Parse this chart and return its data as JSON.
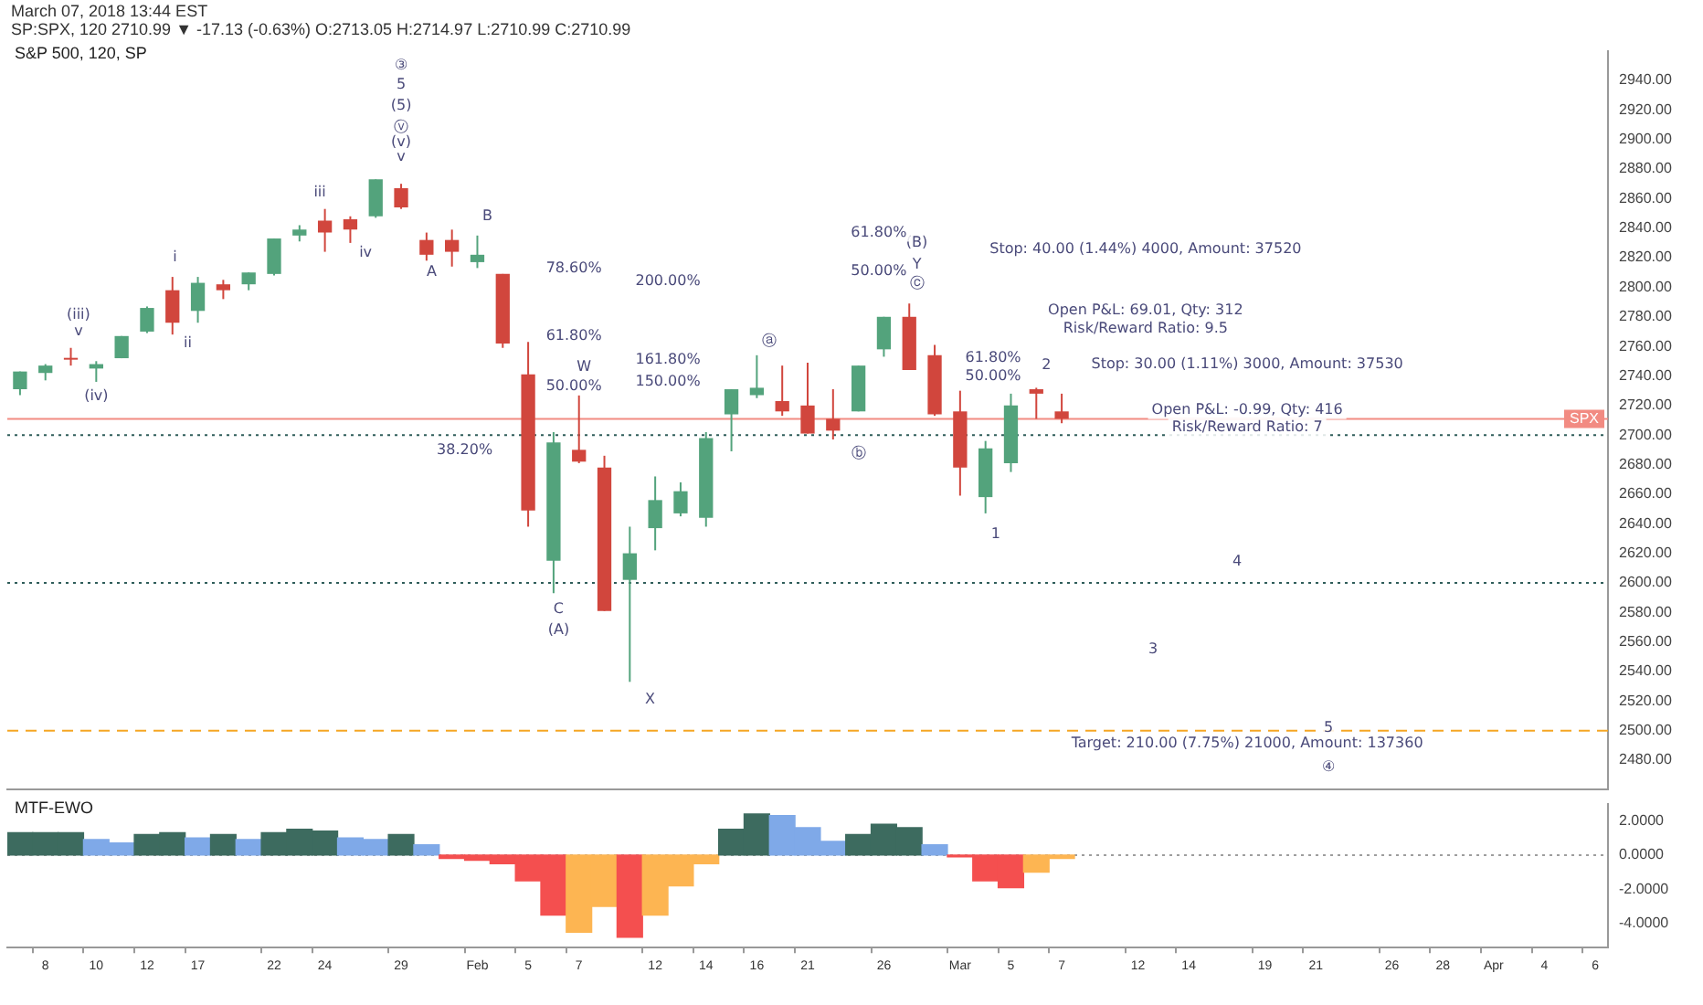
{
  "chart_data": [
    {
      "type": "candlestick",
      "title": "S&P 500, 120, SP",
      "subtitle": "SP:SPX, 120 2710.99 ▼ -17.13 (-0.63%) O:2713.05 H:2714.97 L:2710.99 C:2710.99",
      "categories": [
        null,
        null,
        null,
        null,
        null,
        null,
        null,
        null,
        null,
        null,
        null,
        null,
        null,
        null,
        null,
        null,
        null,
        null,
        null,
        null,
        null,
        null,
        null,
        null,
        null,
        null,
        null,
        null,
        null,
        null,
        null,
        null,
        null,
        null,
        null,
        null,
        null,
        null,
        null,
        null,
        null,
        null,
        null,
        null,
        null,
        null,
        null,
        null,
        null,
        null,
        null,
        null,
        null,
        null,
        null,
        null,
        null,
        null,
        null,
        null,
        null,
        null,
        null
      ],
      "ohlc": [
        [
          2731,
          2743,
          2727,
          2743
        ],
        [
          2742,
          2748,
          2737,
          2747
        ],
        [
          2751,
          2759,
          2747,
          2751
        ],
        [
          2745,
          2750,
          2736,
          2748
        ],
        [
          2752,
          2767,
          2752,
          2767
        ],
        [
          2770,
          2787,
          2769,
          2786
        ],
        [
          2798,
          2807,
          2768,
          2776
        ],
        [
          2784,
          2807,
          2776,
          2803
        ],
        [
          2802,
          2805,
          2792,
          2798
        ],
        [
          2802,
          2810,
          2798,
          2810
        ],
        [
          2809,
          2833,
          2808,
          2833
        ],
        [
          2835,
          2842,
          2831,
          2839
        ],
        [
          2845,
          2853,
          2824,
          2837
        ],
        [
          2846,
          2848,
          2830,
          2839
        ],
        [
          2848,
          2873,
          2847,
          2873
        ],
        [
          2867,
          2870,
          2853,
          2854
        ],
        [
          2832,
          2837,
          2818,
          2822
        ],
        [
          2832,
          2839,
          2814,
          2824
        ],
        [
          2817,
          2835,
          2813,
          2822
        ],
        [
          2809,
          2809,
          2759,
          2762
        ],
        [
          2741,
          2763,
          2638,
          2649
        ],
        [
          2615,
          2702,
          2593,
          2695
        ],
        [
          2690,
          2727,
          2681,
          2682
        ],
        [
          2678,
          2686,
          2581,
          2581
        ],
        [
          2602,
          2638,
          2533,
          2620
        ],
        [
          2637,
          2672,
          2622,
          2656
        ],
        [
          2647,
          2668,
          2645,
          2662
        ],
        [
          2644,
          2702,
          2638,
          2698
        ],
        [
          2714,
          2731,
          2689,
          2731
        ],
        [
          2727,
          2754,
          2725,
          2732
        ],
        [
          2723,
          2747,
          2713,
          2716
        ],
        [
          2720,
          2749,
          2701,
          2701
        ],
        [
          2711,
          2731,
          2697,
          2703
        ],
        [
          2716,
          2747,
          2716,
          2747
        ],
        [
          2758,
          2780,
          2753,
          2780
        ],
        [
          2780,
          2789,
          2744,
          2744
        ],
        [
          2754,
          2761,
          2713,
          2714
        ],
        [
          2716,
          2730,
          2659,
          2678
        ],
        [
          2658,
          2696,
          2647,
          2691
        ],
        [
          2681,
          2728,
          2675,
          2720
        ],
        [
          2731,
          2732,
          2711,
          2728
        ],
        [
          2716,
          2728,
          2708,
          2711
        ],
        null,
        null,
        null,
        null,
        null,
        null,
        null,
        null,
        null,
        null,
        null,
        null,
        null,
        null,
        null,
        null,
        null,
        null,
        null,
        null,
        null
      ],
      "colors": [
        "#53a37c",
        "#53a37c",
        "#d1463d",
        "#53a37c",
        "#53a37c",
        "#53a37c",
        "#d1463d",
        "#53a37c",
        "#d1463d",
        "#53a37c",
        "#53a37c",
        "#53a37c",
        "#d1463d",
        "#d1463d",
        "#53a37c",
        "#d1463d",
        "#d1463d",
        "#d1463d",
        "#53a37c",
        "#d1463d",
        "#d1463d",
        "#53a37c",
        "#d1463d",
        "#d1463d",
        "#53a37c",
        "#53a37c",
        "#53a37c",
        "#53a37c",
        "#53a37c",
        "#53a37c",
        "#d1463d",
        "#d1463d",
        "#d1463d",
        "#53a37c",
        "#53a37c",
        "#d1463d",
        "#d1463d",
        "#d1463d",
        "#53a37c",
        "#53a37c",
        "#d1463d",
        "#d1463d",
        null,
        null,
        null,
        null,
        null,
        null,
        null,
        null,
        null,
        null,
        null,
        null,
        null,
        null,
        null,
        null,
        null,
        null,
        null,
        null,
        null
      ],
      "ylim": [
        2460,
        2960
      ],
      "yticks": [
        {
          "value": 2480,
          "label": "2480.00"
        },
        {
          "value": 2500,
          "label": "2500.00"
        },
        {
          "value": 2520,
          "label": "2520.00"
        },
        {
          "value": 2540,
          "label": "2540.00"
        },
        {
          "value": 2560,
          "label": "2560.00"
        },
        {
          "value": 2580,
          "label": "2580.00"
        },
        {
          "value": 2600,
          "label": "2600.00"
        },
        {
          "value": 2620,
          "label": "2620.00"
        },
        {
          "value": 2640,
          "label": "2640.00"
        },
        {
          "value": 2660,
          "label": "2660.00"
        },
        {
          "value": 2680,
          "label": "2680.00"
        },
        {
          "value": 2700,
          "label": "2700.00"
        },
        {
          "value": 2720,
          "label": "2720.00"
        },
        {
          "value": 2740,
          "label": "2740.00"
        },
        {
          "value": 2760,
          "label": "2760.00"
        },
        {
          "value": 2780,
          "label": "2780.00"
        },
        {
          "value": 2800,
          "label": "2800.00"
        },
        {
          "value": 2820,
          "label": "2820.00"
        },
        {
          "value": 2840,
          "label": "2840.00"
        },
        {
          "value": 2860,
          "label": "2860.00"
        },
        {
          "value": 2880,
          "label": "2880.00"
        },
        {
          "value": 2900,
          "label": "2900.00"
        },
        {
          "value": 2920,
          "label": "2920.00"
        },
        {
          "value": 2940,
          "label": "2940.00"
        }
      ],
      "tick_labels": "y",
      "ref_lines": [
        {
          "axis": "y",
          "value": 2710.99,
          "label": "SPX",
          "color": "#f28b82",
          "line_style": "solid"
        },
        {
          "axis": "y",
          "value": 2700,
          "color": "#2f5d5a",
          "line_style": "dotted"
        },
        {
          "axis": "y",
          "value": 2600,
          "color": "#2f5d5a",
          "line_style": "dotted"
        },
        {
          "axis": "y",
          "value": 2500,
          "color": "#f5a623",
          "line_style": "dashed"
        }
      ],
      "annotations": [
        "March 07, 2018 13:44 EST",
        "③",
        "5",
        "(5)",
        "ⓥ",
        "(v)",
        "v",
        "iii",
        "iv",
        "i",
        "ii",
        "(iii)",
        "v",
        "(iv)",
        "B",
        "A",
        "C",
        "(A)",
        "W",
        "X",
        "ⓐ",
        "ⓑ",
        "(B)",
        "Y",
        "ⓒ",
        "1",
        "2",
        "3",
        "4",
        "5",
        "④",
        "78.60%",
        "61.80%",
        "50.00%",
        "38.20%",
        "200.00%",
        "161.80%",
        "150.00%",
        "61.80%",
        "50.00%",
        "61.80%",
        "50.00%",
        "Stop: 40.00 (1.44%) 4000, Amount: 37520",
        "Open P&L: 69.01, Qty: 312",
        "Risk/Reward Ratio: 9.5",
        "Stop: 30.00 (1.11%) 3000, Amount: 37530",
        "Open P&L: -0.99, Qty: 416",
        "Risk/Reward Ratio: 7",
        "Target: 210.00 (7.75%) 21000, Amount: 137360"
      ]
    },
    {
      "type": "bar",
      "title": "MTF-EWO",
      "categories": [
        null,
        "8",
        null,
        "10",
        null,
        "12",
        null,
        "17",
        null,
        null,
        "22",
        null,
        "24",
        null,
        null,
        "29",
        null,
        null,
        "Feb",
        null,
        "5",
        null,
        "7",
        null,
        null,
        "12",
        null,
        "14",
        null,
        "16",
        null,
        "21",
        null,
        null,
        "26",
        null,
        null,
        "Mar",
        null,
        "5",
        null,
        "7",
        null,
        null,
        "12",
        null,
        "14",
        null,
        null,
        "19",
        null,
        "21",
        null,
        null,
        "26",
        null,
        "28",
        null,
        "Apr",
        null,
        "4",
        null,
        "6"
      ],
      "values": [
        1.3,
        1.3,
        1.3,
        0.9,
        0.7,
        1.2,
        1.3,
        1.0,
        1.2,
        0.9,
        1.3,
        1.5,
        1.4,
        1.0,
        0.9,
        1.2,
        0.6,
        -0.2,
        -0.3,
        -0.5,
        -1.5,
        -3.5,
        -4.5,
        -3.0,
        -4.8,
        -3.5,
        -1.8,
        -0.5,
        1.5,
        2.4,
        2.3,
        1.6,
        0.8,
        1.2,
        1.8,
        1.6,
        0.6,
        -0.1,
        -1.5,
        -1.9,
        -1.0,
        -0.2,
        null,
        null,
        null,
        null,
        null,
        null,
        null,
        null,
        null,
        null,
        null,
        null,
        null,
        null,
        null,
        null,
        null,
        null,
        null,
        null,
        null
      ],
      "colors": [
        "#3d6b5f",
        "#3d6b5f",
        "#3d6b5f",
        "#7fa9e8",
        "#7fa9e8",
        "#3d6b5f",
        "#3d6b5f",
        "#7fa9e8",
        "#3d6b5f",
        "#7fa9e8",
        "#3d6b5f",
        "#3d6b5f",
        "#3d6b5f",
        "#7fa9e8",
        "#7fa9e8",
        "#3d6b5f",
        "#7fa9e8",
        "#f44f4f",
        "#f44f4f",
        "#f44f4f",
        "#f44f4f",
        "#f44f4f",
        "#fdb552",
        "#fdb552",
        "#f44f4f",
        "#fdb552",
        "#fdb552",
        "#fdb552",
        "#3d6b5f",
        "#3d6b5f",
        "#7fa9e8",
        "#7fa9e8",
        "#7fa9e8",
        "#3d6b5f",
        "#3d6b5f",
        "#3d6b5f",
        "#7fa9e8",
        "#f44f4f",
        "#f44f4f",
        "#f44f4f",
        "#fdb552",
        "#fdb552",
        null,
        null,
        null,
        null,
        null,
        null,
        null,
        null,
        null,
        null,
        null,
        null,
        null,
        null,
        null,
        null,
        null,
        null,
        null,
        null,
        null
      ],
      "ylim": [
        -5.4,
        3.0
      ],
      "yticks": [
        {
          "value": 2,
          "label": "2.0000"
        },
        {
          "value": 0,
          "label": "0.0000"
        },
        {
          "value": -2,
          "label": "-2.0000"
        },
        {
          "value": -4,
          "label": "-4.0000"
        }
      ],
      "ref_lines": [
        {
          "axis": "y",
          "value": 0,
          "color": "#9e9e9e",
          "line_style": "dotted"
        }
      ]
    }
  ]
}
